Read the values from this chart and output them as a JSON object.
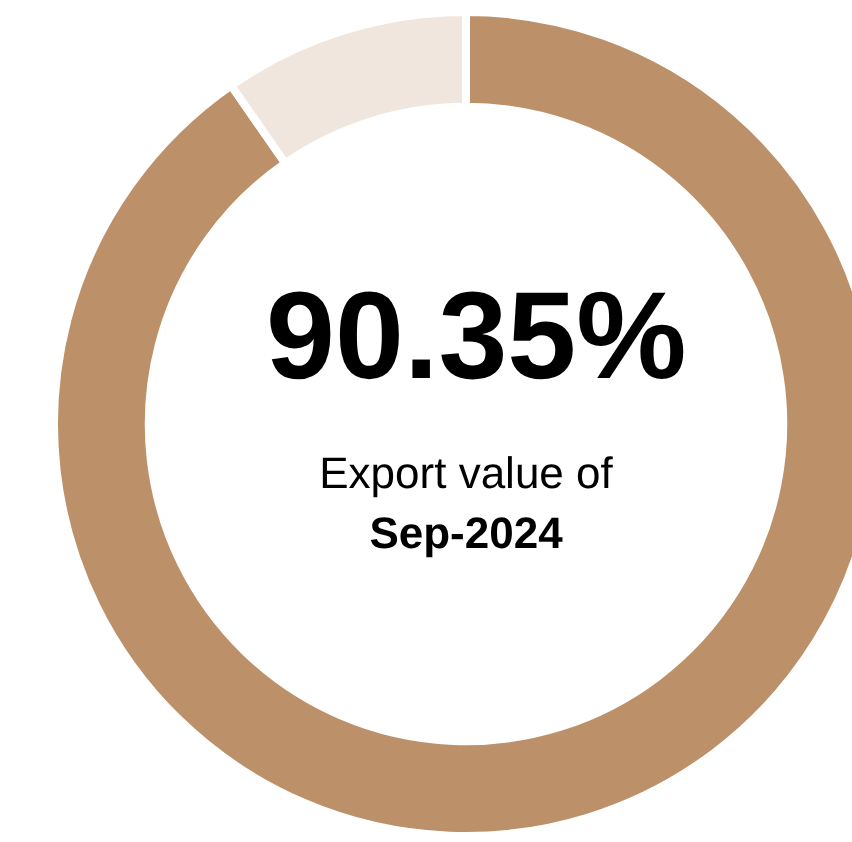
{
  "chart_data": {
    "type": "donut",
    "categories": [
      null,
      null
    ],
    "values": [
      90.35,
      9.65
    ],
    "colors": [
      "#bc9068",
      "#f0e6de"
    ],
    "annotations": [
      "90.35%",
      "Export value of",
      "Sep-2024"
    ],
    "legend": false
  }
}
